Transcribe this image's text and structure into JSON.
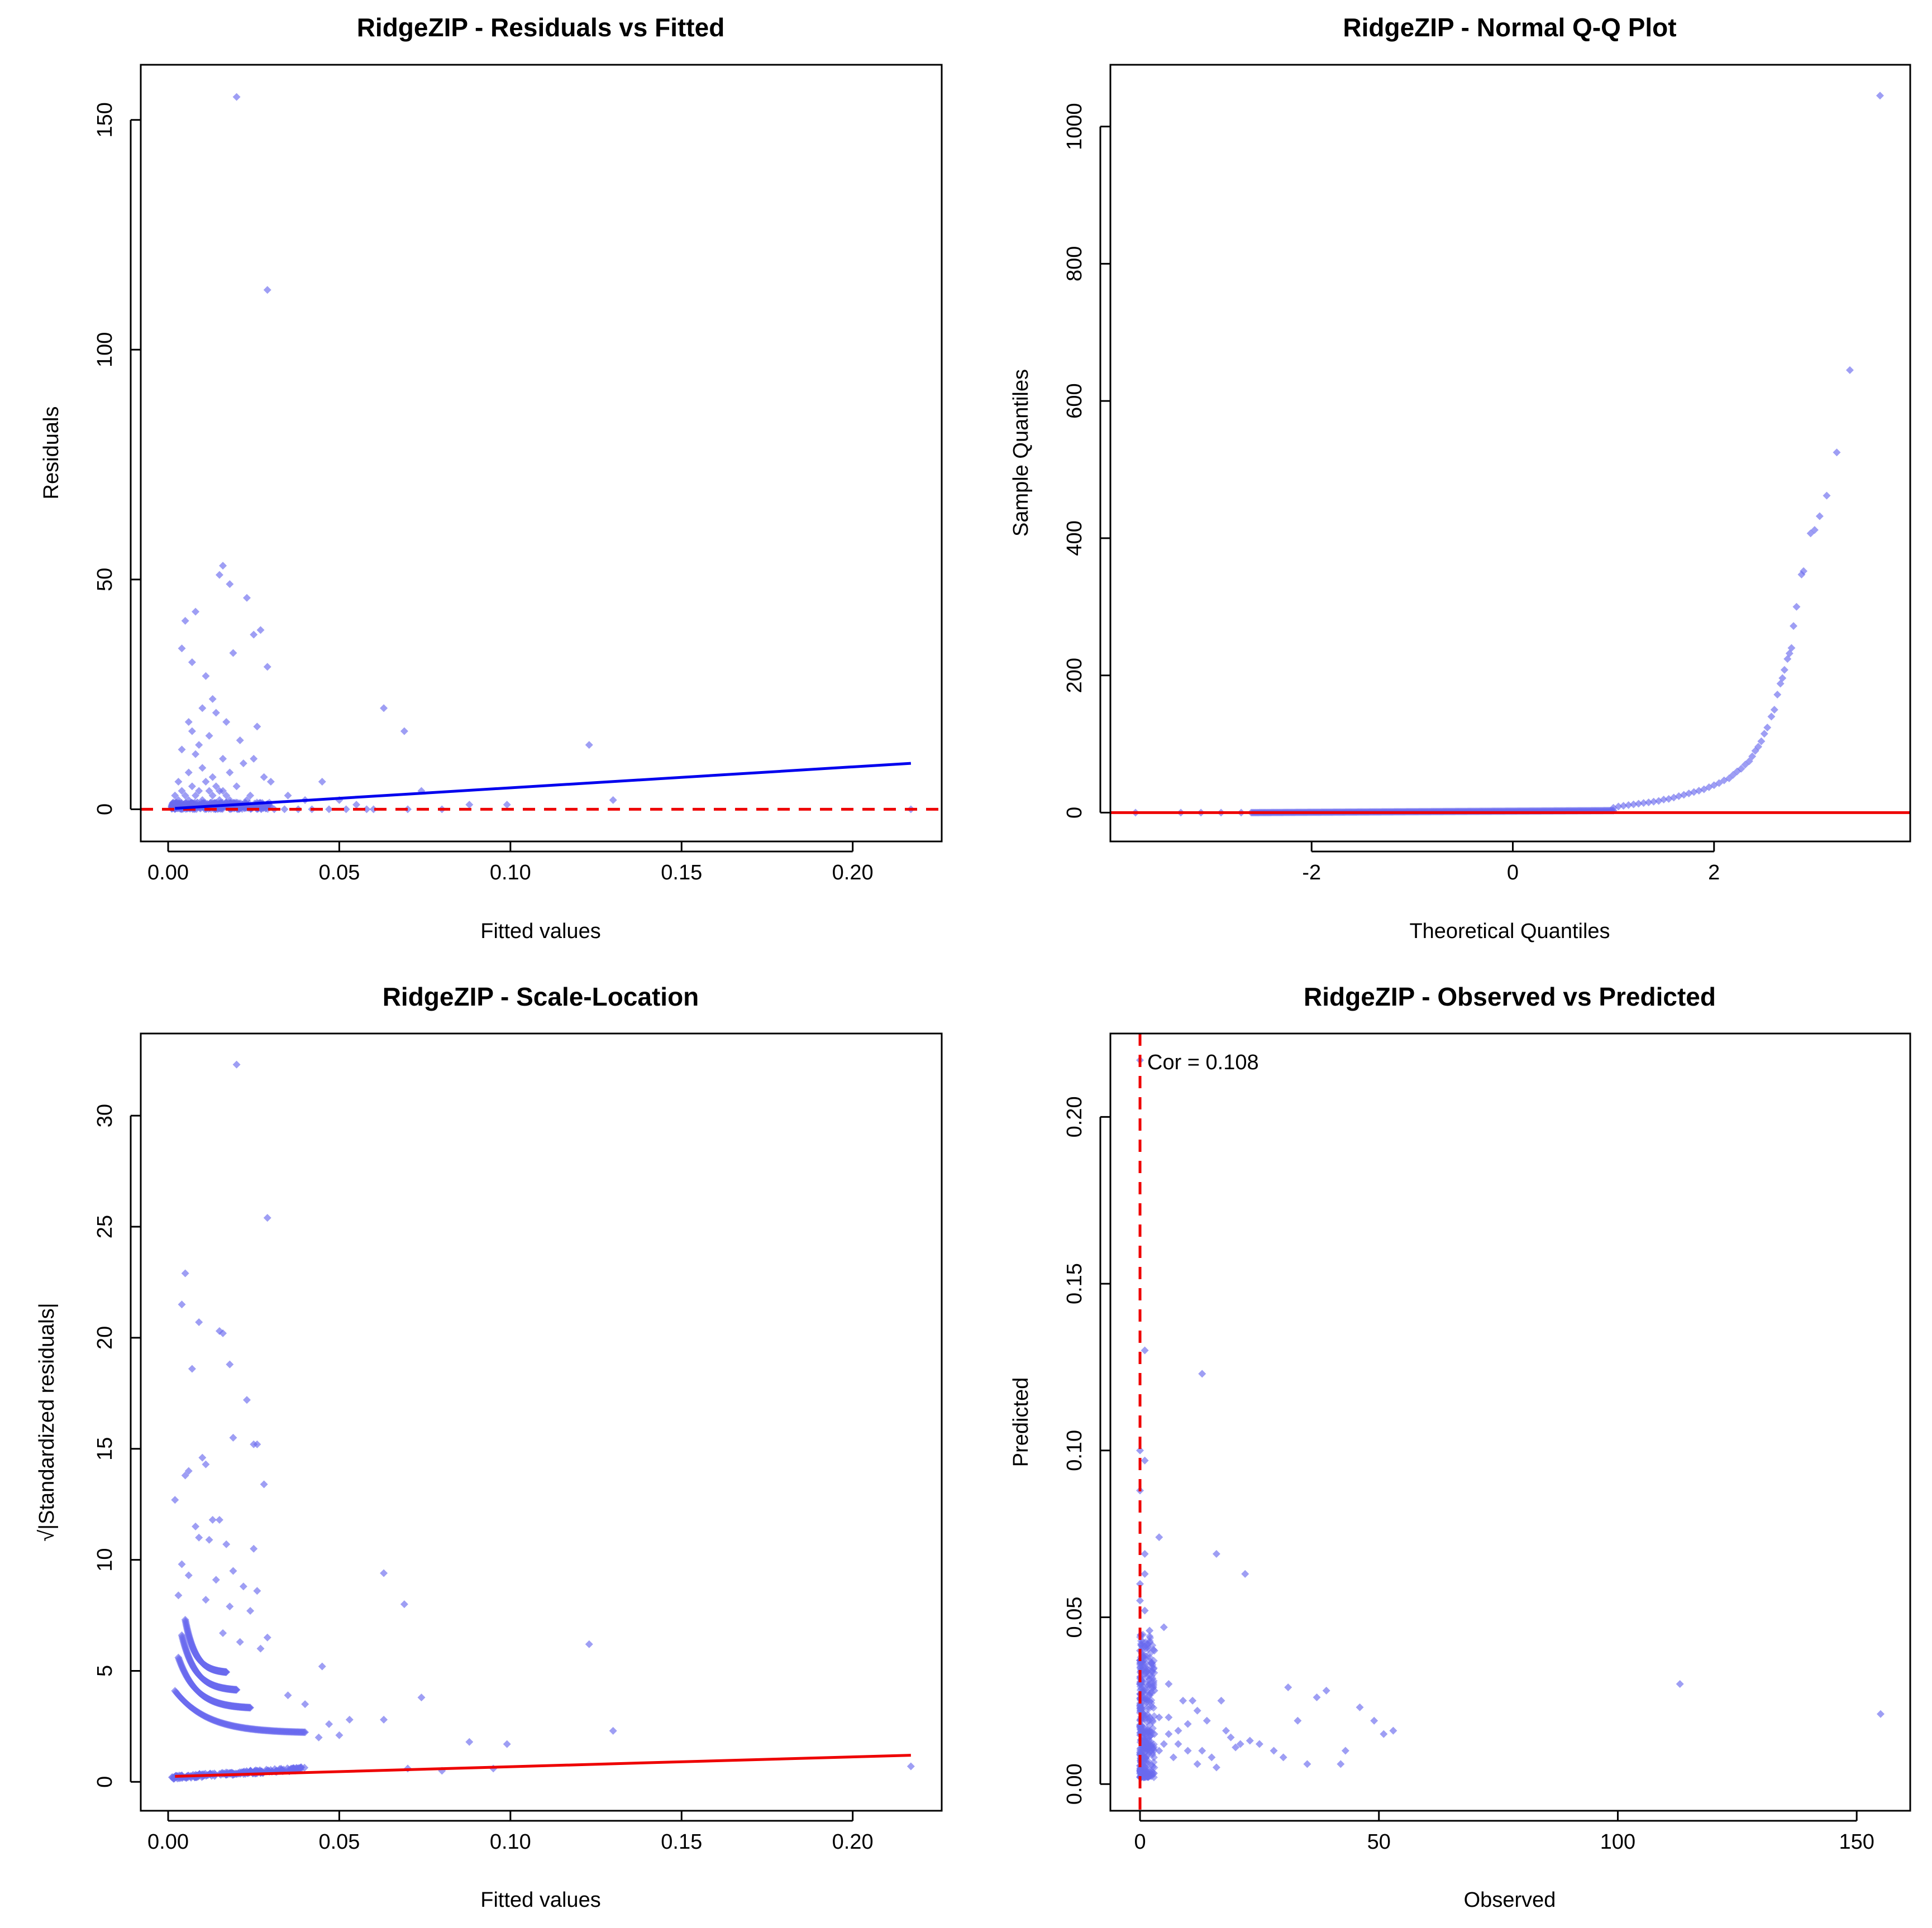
{
  "colors": {
    "points": "#6a6aee",
    "blue_line": "#0000ee",
    "red_line": "#ee0000",
    "axes": "#000000"
  },
  "chart_data": [
    {
      "id": "resid",
      "type": "scatter",
      "title": "RidgeZIP - Residuals vs Fitted",
      "xlabel": "Fitted values",
      "ylabel": "Residuals",
      "xlim": [
        -0.008,
        0.226
      ],
      "ylim": [
        -7,
        162
      ],
      "xticks": [
        0.0,
        0.05,
        0.1,
        0.15,
        0.2
      ],
      "xtick_labels": [
        "0.00",
        "0.05",
        "0.10",
        "0.15",
        "0.20"
      ],
      "yticks": [
        0,
        50,
        100,
        150
      ],
      "ytick_labels": [
        "0",
        "50",
        "100",
        "150"
      ],
      "points": [
        [
          0.02,
          155
        ],
        [
          0.029,
          113
        ],
        [
          0.016,
          53
        ],
        [
          0.015,
          51
        ],
        [
          0.018,
          49
        ],
        [
          0.023,
          46
        ],
        [
          0.008,
          43
        ],
        [
          0.005,
          41
        ],
        [
          0.025,
          38
        ],
        [
          0.027,
          39
        ],
        [
          0.004,
          35
        ],
        [
          0.007,
          32
        ],
        [
          0.019,
          34
        ],
        [
          0.029,
          31
        ],
        [
          0.011,
          29
        ],
        [
          0.01,
          22
        ],
        [
          0.013,
          24
        ],
        [
          0.006,
          19
        ],
        [
          0.014,
          21
        ],
        [
          0.017,
          19
        ],
        [
          0.007,
          17
        ],
        [
          0.012,
          16
        ],
        [
          0.009,
          14
        ],
        [
          0.021,
          15
        ],
        [
          0.026,
          18
        ],
        [
          0.004,
          13
        ],
        [
          0.008,
          12
        ],
        [
          0.016,
          11
        ],
        [
          0.022,
          10
        ],
        [
          0.025,
          11
        ],
        [
          0.01,
          9
        ],
        [
          0.018,
          8
        ],
        [
          0.028,
          7
        ],
        [
          0.006,
          8
        ],
        [
          0.013,
          7
        ],
        [
          0.003,
          6
        ],
        [
          0.02,
          5
        ],
        [
          0.03,
          6
        ],
        [
          0.015,
          4
        ],
        [
          0.024,
          3
        ],
        [
          0.035,
          3
        ],
        [
          0.04,
          2
        ],
        [
          0.045,
          6
        ],
        [
          0.05,
          2
        ],
        [
          0.055,
          1
        ],
        [
          0.063,
          22
        ],
        [
          0.069,
          17
        ],
        [
          0.074,
          4
        ],
        [
          0.088,
          1
        ],
        [
          0.099,
          1
        ],
        [
          0.123,
          14
        ],
        [
          0.13,
          2
        ],
        [
          0.217,
          0
        ],
        [
          0.06,
          0
        ],
        [
          0.07,
          0
        ],
        [
          0.08,
          0
        ],
        [
          0.058,
          0
        ],
        [
          0.052,
          0
        ],
        [
          0.047,
          0
        ],
        [
          0.042,
          0
        ],
        [
          0.038,
          0
        ],
        [
          0.034,
          0
        ],
        [
          0.031,
          0
        ],
        [
          0.002,
          3
        ],
        [
          0.003,
          2
        ],
        [
          0.004,
          4
        ],
        [
          0.005,
          3
        ],
        [
          0.006,
          2
        ],
        [
          0.007,
          5
        ],
        [
          0.008,
          3
        ],
        [
          0.009,
          4
        ],
        [
          0.01,
          2
        ],
        [
          0.011,
          6
        ],
        [
          0.012,
          4
        ],
        [
          0.013,
          3
        ],
        [
          0.014,
          5
        ],
        [
          0.015,
          2
        ],
        [
          0.016,
          4
        ],
        [
          0.017,
          3
        ],
        [
          0.018,
          2
        ],
        [
          0.019,
          1
        ],
        [
          0.021,
          1
        ],
        [
          0.023,
          2
        ]
      ],
      "cluster": {
        "x_range": [
          0.001,
          0.03
        ],
        "y_range": [
          0,
          1.5
        ],
        "count": 420
      },
      "fit_line": {
        "x": [
          0.002,
          0.217
        ],
        "y": [
          0.2,
          10.0
        ]
      },
      "ref_line": {
        "y": 0,
        "style": "dashed"
      }
    },
    {
      "id": "qq",
      "type": "scatter",
      "title": "RidgeZIP - Normal Q-Q Plot",
      "xlabel": "Theoretical Quantiles",
      "ylabel": "Sample Quantiles",
      "xlim": [
        -4.0,
        3.95
      ],
      "ylim": [
        -42,
        1090
      ],
      "xticks": [
        -2,
        0,
        2
      ],
      "xtick_labels": [
        "-2",
        "0",
        "2"
      ],
      "yticks": [
        0,
        200,
        400,
        600,
        800,
        1000
      ],
      "ytick_labels": [
        "0",
        "200",
        "400",
        "600",
        "800",
        "1000"
      ],
      "points": [
        [
          -3.75,
          0
        ],
        [
          -3.3,
          0
        ],
        [
          -3.1,
          0
        ],
        [
          -2.9,
          0
        ],
        [
          -2.7,
          0
        ],
        [
          3.65,
          1045
        ],
        [
          3.35,
          645
        ],
        [
          3.22,
          525
        ],
        [
          3.12,
          462
        ],
        [
          3.05,
          432
        ],
        [
          3.0,
          412
        ],
        [
          2.96,
          407
        ],
        [
          2.89,
          352
        ],
        [
          2.87,
          347
        ],
        [
          2.82,
          300
        ],
        [
          2.79,
          272
        ],
        [
          2.77,
          240
        ],
        [
          2.75,
          232
        ],
        [
          2.73,
          224
        ],
        [
          2.7,
          208
        ],
        [
          2.68,
          196
        ],
        [
          2.66,
          188
        ],
        [
          2.63,
          172
        ],
        [
          2.6,
          150
        ],
        [
          2.57,
          140
        ],
        [
          2.53,
          124
        ],
        [
          2.5,
          115
        ],
        [
          2.47,
          104
        ],
        [
          2.44,
          96
        ],
        [
          2.41,
          90
        ],
        [
          2.38,
          82
        ],
        [
          2.35,
          75
        ],
        [
          2.31,
          70
        ],
        [
          2.27,
          64
        ],
        [
          2.23,
          60
        ],
        [
          2.19,
          55
        ],
        [
          2.15,
          50
        ],
        [
          2.1,
          47
        ],
        [
          2.05,
          43
        ],
        [
          2.0,
          40
        ],
        [
          1.95,
          37
        ],
        [
          1.9,
          34
        ],
        [
          1.85,
          32
        ],
        [
          1.8,
          30
        ],
        [
          1.75,
          28
        ],
        [
          1.7,
          26
        ],
        [
          1.65,
          24
        ],
        [
          1.6,
          22
        ],
        [
          1.55,
          20
        ],
        [
          1.5,
          19
        ],
        [
          1.45,
          17
        ],
        [
          1.4,
          16
        ],
        [
          1.35,
          15
        ],
        [
          1.3,
          14
        ],
        [
          1.25,
          13
        ],
        [
          1.2,
          12
        ],
        [
          1.15,
          11
        ],
        [
          1.1,
          10
        ],
        [
          1.05,
          9
        ],
        [
          1.0,
          7
        ]
      ],
      "band": {
        "x_range": [
          -2.6,
          1.0
        ],
        "y": [
          0,
          3
        ]
      },
      "ref_line": {
        "y": 0,
        "style": "solid"
      }
    },
    {
      "id": "scale",
      "type": "scatter",
      "title": "RidgeZIP - Scale-Location",
      "xlabel": "Fitted values",
      "ylabel": "√|Standardized residuals|",
      "xlim": [
        -0.008,
        0.226
      ],
      "ylim": [
        -1.3,
        33.7
      ],
      "xticks": [
        0.0,
        0.05,
        0.1,
        0.15,
        0.2
      ],
      "xtick_labels": [
        "0.00",
        "0.05",
        "0.10",
        "0.15",
        "0.20"
      ],
      "yticks": [
        0,
        5,
        10,
        15,
        20,
        25,
        30
      ],
      "ytick_labels": [
        "0",
        "5",
        "10",
        "15",
        "20",
        "25",
        "30"
      ],
      "points": [
        [
          0.02,
          32.3
        ],
        [
          0.029,
          25.4
        ],
        [
          0.005,
          22.9
        ],
        [
          0.004,
          21.5
        ],
        [
          0.009,
          20.7
        ],
        [
          0.015,
          20.3
        ],
        [
          0.016,
          20.2
        ],
        [
          0.007,
          18.6
        ],
        [
          0.018,
          18.8
        ],
        [
          0.023,
          17.2
        ],
        [
          0.019,
          15.5
        ],
        [
          0.025,
          15.2
        ],
        [
          0.026,
          15.2
        ],
        [
          0.006,
          14.0
        ],
        [
          0.005,
          13.8
        ],
        [
          0.01,
          14.6
        ],
        [
          0.011,
          14.3
        ],
        [
          0.028,
          13.4
        ],
        [
          0.002,
          12.7
        ],
        [
          0.013,
          11.8
        ],
        [
          0.015,
          11.8
        ],
        [
          0.008,
          11.5
        ],
        [
          0.009,
          11.0
        ],
        [
          0.025,
          10.5
        ],
        [
          0.012,
          10.9
        ],
        [
          0.017,
          10.7
        ],
        [
          0.004,
          9.8
        ],
        [
          0.019,
          9.5
        ],
        [
          0.014,
          9.1
        ],
        [
          0.006,
          9.3
        ],
        [
          0.022,
          8.8
        ],
        [
          0.026,
          8.6
        ],
        [
          0.003,
          8.4
        ],
        [
          0.011,
          8.2
        ],
        [
          0.018,
          7.9
        ],
        [
          0.024,
          7.7
        ],
        [
          0.029,
          6.5
        ],
        [
          0.027,
          6.0
        ],
        [
          0.021,
          6.3
        ],
        [
          0.016,
          6.7
        ],
        [
          0.063,
          9.4
        ],
        [
          0.069,
          8.0
        ],
        [
          0.045,
          5.2
        ],
        [
          0.035,
          3.9
        ],
        [
          0.04,
          3.5
        ],
        [
          0.047,
          2.6
        ],
        [
          0.053,
          2.8
        ],
        [
          0.063,
          2.8
        ],
        [
          0.074,
          3.8
        ],
        [
          0.088,
          1.8
        ],
        [
          0.099,
          1.7
        ],
        [
          0.123,
          6.2
        ],
        [
          0.13,
          2.3
        ],
        [
          0.217,
          0.7
        ],
        [
          0.044,
          2.0
        ],
        [
          0.05,
          2.1
        ],
        [
          0.07,
          0.6
        ],
        [
          0.08,
          0.5
        ],
        [
          0.095,
          0.6
        ]
      ],
      "curves": [
        {
          "x_start": 0.002,
          "y_start": 4.1,
          "x_end": 0.04,
          "y_end": 2.2
        },
        {
          "x_start": 0.003,
          "y_start": 5.6,
          "x_end": 0.024,
          "y_end": 3.3
        },
        {
          "x_start": 0.004,
          "y_start": 6.6,
          "x_end": 0.02,
          "y_end": 4.1
        },
        {
          "x_start": 0.005,
          "y_start": 7.3,
          "x_end": 0.017,
          "y_end": 4.9
        }
      ],
      "band": {
        "x_range": [
          0.001,
          0.04
        ],
        "y_range": [
          0.2,
          0.6
        ]
      },
      "fit_line": {
        "x": [
          0.002,
          0.217
        ],
        "y": [
          0.25,
          1.2
        ]
      }
    },
    {
      "id": "obs",
      "type": "scatter",
      "title": "RidgeZIP - Observed vs Predicted",
      "xlabel": "Observed",
      "ylabel": "Predicted",
      "xlim": [
        -6.2,
        161.2
      ],
      "ylim": [
        -0.008,
        0.225
      ],
      "xticks": [
        0,
        50,
        100,
        150
      ],
      "xtick_labels": [
        "0",
        "50",
        "100",
        "150"
      ],
      "yticks": [
        0.0,
        0.05,
        0.1,
        0.15,
        0.2
      ],
      "ytick_labels": [
        "0.00",
        "0.05",
        "0.10",
        "0.15",
        "0.20"
      ],
      "annotation": "Cor = 0.108",
      "points": [
        [
          0,
          0.217
        ],
        [
          1,
          0.13
        ],
        [
          0,
          0.1
        ],
        [
          1,
          0.097
        ],
        [
          0,
          0.088
        ],
        [
          4,
          0.074
        ],
        [
          1,
          0.069
        ],
        [
          0,
          0.06
        ],
        [
          1,
          0.063
        ],
        [
          13,
          0.123
        ],
        [
          16,
          0.069
        ],
        [
          22,
          0.063
        ],
        [
          0,
          0.055
        ],
        [
          1,
          0.052
        ],
        [
          2,
          0.046
        ],
        [
          5,
          0.047
        ],
        [
          0,
          0.04
        ],
        [
          3,
          0.04
        ],
        [
          6,
          0.03
        ],
        [
          9,
          0.025
        ],
        [
          11,
          0.025
        ],
        [
          12,
          0.022
        ],
        [
          14,
          0.019
        ],
        [
          17,
          0.025
        ],
        [
          19,
          0.014
        ],
        [
          21,
          0.012
        ],
        [
          23,
          0.013
        ],
        [
          31,
          0.029
        ],
        [
          33,
          0.019
        ],
        [
          35,
          0.006
        ],
        [
          37,
          0.026
        ],
        [
          39,
          0.028
        ],
        [
          42,
          0.006
        ],
        [
          43,
          0.01
        ],
        [
          46,
          0.023
        ],
        [
          49,
          0.019
        ],
        [
          51,
          0.015
        ],
        [
          53,
          0.016
        ],
        [
          113,
          0.03
        ],
        [
          155,
          0.021
        ],
        [
          2,
          0.02
        ],
        [
          3,
          0.015
        ],
        [
          4,
          0.01
        ],
        [
          5,
          0.012
        ],
        [
          6,
          0.02
        ],
        [
          7,
          0.008
        ],
        [
          8,
          0.016
        ],
        [
          10,
          0.01
        ],
        [
          12,
          0.006
        ],
        [
          15,
          0.008
        ],
        [
          18,
          0.016
        ],
        [
          1,
          0.035
        ],
        [
          2,
          0.03
        ],
        [
          3,
          0.028
        ],
        [
          1,
          0.033
        ],
        [
          4,
          0.02
        ],
        [
          6,
          0.015
        ],
        [
          8,
          0.012
        ],
        [
          10,
          0.018
        ],
        [
          13,
          0.01
        ],
        [
          16,
          0.005
        ],
        [
          20,
          0.011
        ],
        [
          25,
          0.012
        ],
        [
          28,
          0.01
        ],
        [
          30,
          0.008
        ]
      ],
      "cluster": {
        "x_range": [
          0,
          3
        ],
        "y_range": [
          0.002,
          0.045
        ],
        "count": 380
      },
      "ref_line": {
        "x": 0,
        "style": "dashed"
      }
    }
  ]
}
